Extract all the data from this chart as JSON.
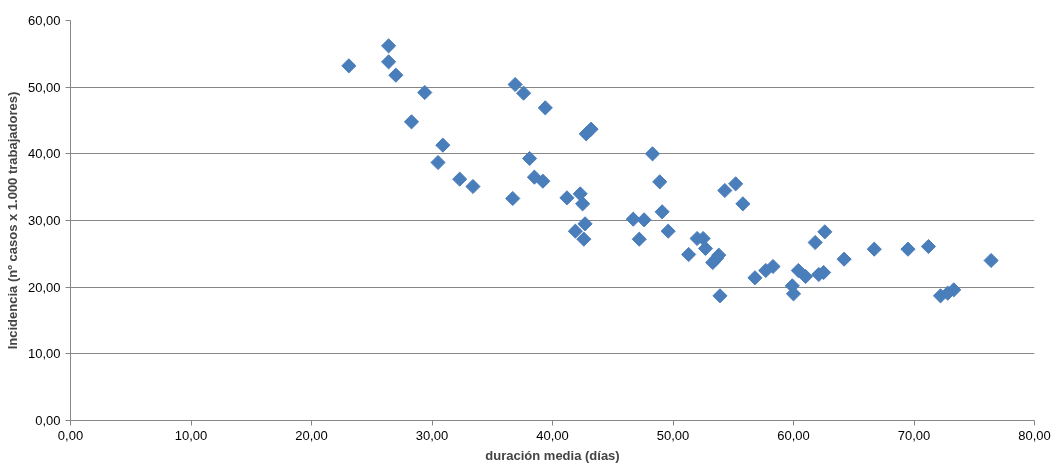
{
  "chart_data": {
    "type": "scatter",
    "xlabel": "duración media (días)",
    "ylabel": "Incidencia (nº casos x 1.000 trabajadores)",
    "marker": "diamond",
    "grid": "y",
    "xlim": [
      0,
      80
    ],
    "ylim": [
      0,
      60
    ],
    "xticks": [
      {
        "value": 0,
        "label": "0,00"
      },
      {
        "value": 10,
        "label": "10,00"
      },
      {
        "value": 20,
        "label": "20,00"
      },
      {
        "value": 30,
        "label": "30,00"
      },
      {
        "value": 40,
        "label": "40,00"
      },
      {
        "value": 50,
        "label": "50,00"
      },
      {
        "value": 60,
        "label": "60,00"
      },
      {
        "value": 70,
        "label": "70,00"
      },
      {
        "value": 80,
        "label": "80,00"
      }
    ],
    "yticks": [
      {
        "value": 0,
        "label": "0,00"
      },
      {
        "value": 10,
        "label": "10,00"
      },
      {
        "value": 20,
        "label": "20,00"
      },
      {
        "value": 30,
        "label": "30,00"
      },
      {
        "value": 40,
        "label": "40,00"
      },
      {
        "value": 50,
        "label": "50,00"
      },
      {
        "value": 60,
        "label": "60,00"
      }
    ],
    "series": [
      {
        "color": "#4a7ebb",
        "x": [
          23.1,
          26.4,
          26.4,
          27.0,
          28.3,
          29.4,
          30.5,
          30.9,
          32.3,
          33.4,
          36.7,
          36.9,
          37.6,
          38.1,
          38.5,
          39.2,
          39.4,
          41.2,
          41.9,
          42.3,
          42.5,
          42.6,
          42.7,
          42.8,
          43.2,
          46.7,
          47.2,
          47.6,
          48.3,
          48.9,
          49.1,
          49.6,
          51.3,
          52.0,
          52.5,
          52.7,
          53.3,
          53.6,
          53.8,
          53.9,
          54.3,
          55.2,
          55.8,
          56.8,
          57.7,
          58.3,
          59.9,
          60.0,
          60.4,
          61.0,
          61.8,
          62.1,
          62.5,
          62.6,
          64.2,
          66.7,
          69.5,
          71.2,
          72.2,
          72.8,
          73.3,
          76.4
        ],
        "values": [
          53.2,
          56.2,
          53.8,
          51.8,
          44.8,
          49.2,
          38.7,
          41.3,
          36.2,
          35.1,
          33.3,
          50.4,
          49.1,
          39.3,
          36.5,
          35.9,
          46.9,
          33.4,
          28.4,
          34.0,
          32.5,
          27.2,
          29.5,
          43.0,
          43.7,
          30.2,
          27.2,
          30.1,
          40.0,
          35.8,
          31.3,
          28.4,
          24.9,
          27.3,
          27.3,
          25.8,
          23.7,
          24.3,
          24.8,
          18.7,
          34.5,
          35.5,
          32.5,
          21.4,
          22.5,
          23.1,
          20.2,
          19.0,
          22.5,
          21.6,
          26.7,
          21.9,
          22.2,
          28.3,
          24.2,
          25.7,
          25.7,
          26.1,
          18.7,
          19.1,
          19.6,
          24.0
        ]
      }
    ]
  }
}
